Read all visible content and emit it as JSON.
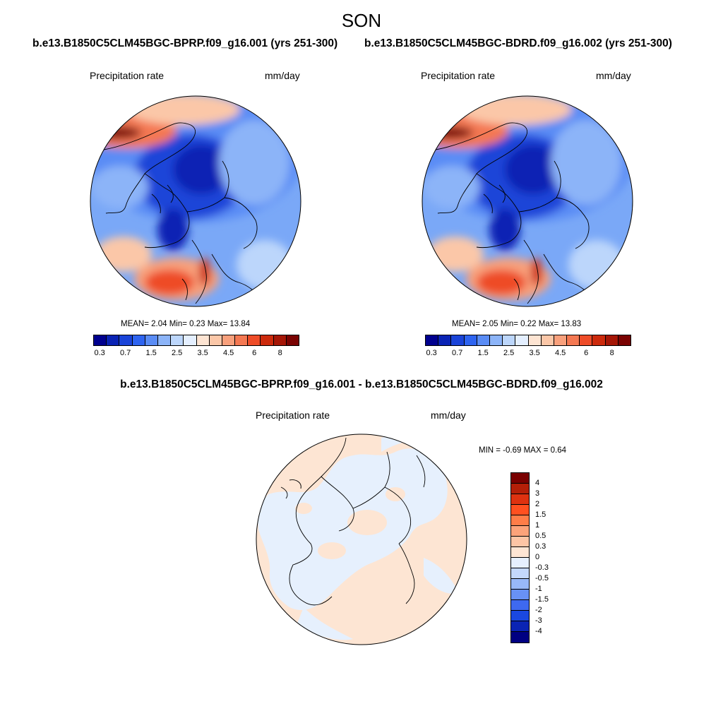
{
  "page": {
    "season": "SON",
    "case_a_title": "b.e13.B1850C5CLM45BGC-BPRP.f09_g16.001 (yrs 251-300)",
    "case_b_title": "b.e13.B1850C5CLM45BGC-BDRD.f09_g16.002 (yrs 251-300)",
    "diff_title": "b.e13.B1850C5CLM45BGC-BPRP.f09_g16.001 - b.e13.B1850C5CLM45BGC-BDRD.f09_g16.002"
  },
  "panels": {
    "a": {
      "variable": "Precipitation rate",
      "units": "mm/day",
      "stats": "MEAN=   2.04  Min=   0.23  Max=  13.84",
      "projection": "north polar stereographic"
    },
    "b": {
      "variable": "Precipitation rate",
      "units": "mm/day",
      "stats": "MEAN=   2.05  Min=   0.22  Max=  13.83",
      "projection": "north polar stereographic"
    },
    "diff": {
      "variable": "Precipitation rate",
      "units": "mm/day",
      "stats": "MIN =  -0.69 MAX =   0.64",
      "projection": "north polar stereographic"
    }
  },
  "colorbars": {
    "field": {
      "colors": [
        "#00008e",
        "#0a23b4",
        "#1a44d8",
        "#2e64f0",
        "#5a8cf5",
        "#8cb4f8",
        "#bcd6fb",
        "#e4efff",
        "#fde4d2",
        "#fbc7a8",
        "#f8a07c",
        "#f47852",
        "#ee4c28",
        "#cc2a0c",
        "#a51606",
        "#7a0302"
      ],
      "tick_labels": [
        "0.3",
        "0.7",
        "1.5",
        "2.5",
        "3.5",
        "4.5",
        "6",
        "8"
      ]
    },
    "diff": {
      "colors": [
        "#7a0000",
        "#b41f08",
        "#de3210",
        "#ff5020",
        "#ff7d48",
        "#fca37a",
        "#fdc5a5",
        "#fde5d3",
        "#e6f0fd",
        "#c4d8fc",
        "#98b8f9",
        "#6891f5",
        "#3e69f0",
        "#1a48e0",
        "#0a24b4",
        "#000082"
      ],
      "tick_labels": [
        "4",
        "3",
        "2",
        "1.5",
        "1",
        "0.5",
        "0.3",
        "0",
        "-0.3",
        "-0.5",
        "-1",
        "-1.5",
        "-2",
        "-3",
        "-4"
      ]
    }
  },
  "chart_data": [
    {
      "type": "heatmap",
      "title": "Precipitation rate",
      "subtitle": "b.e13.B1850C5CLM45BGC-BPRP.f09_g16.001 (yrs 251-300)",
      "units": "mm/day",
      "season": "SON",
      "mean": 2.04,
      "min": 0.23,
      "max": 13.84,
      "contour_levels": [
        0.2,
        0.3,
        0.5,
        0.7,
        1,
        1.5,
        2,
        2.5,
        3,
        3.5,
        4,
        4.5,
        5,
        6,
        7,
        8
      ]
    },
    {
      "type": "heatmap",
      "title": "Precipitation rate",
      "subtitle": "b.e13.B1850C5CLM45BGC-BDRD.f09_g16.002 (yrs 251-300)",
      "units": "mm/day",
      "season": "SON",
      "mean": 2.05,
      "min": 0.22,
      "max": 13.83,
      "contour_levels": [
        0.2,
        0.3,
        0.5,
        0.7,
        1,
        1.5,
        2,
        2.5,
        3,
        3.5,
        4,
        4.5,
        5,
        6,
        7,
        8
      ]
    },
    {
      "type": "heatmap",
      "title": "Precipitation rate",
      "subtitle": "b.e13.B1850C5CLM45BGC-BPRP.f09_g16.001 - b.e13.B1850C5CLM45BGC-BDRD.f09_g16.002",
      "units": "mm/day",
      "season": "SON",
      "min": -0.69,
      "max": 0.64,
      "contour_levels": [
        -4,
        -3,
        -2,
        -1.5,
        -1,
        -0.5,
        -0.3,
        0,
        0.3,
        0.5,
        1,
        1.5,
        2,
        3,
        4
      ]
    }
  ]
}
